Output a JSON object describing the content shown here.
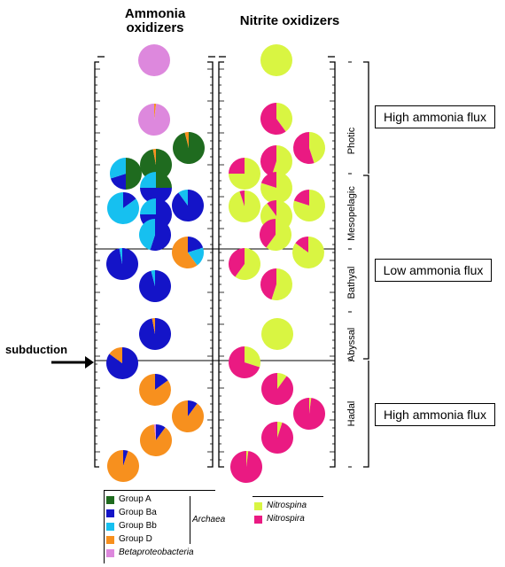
{
  "titles": {
    "ammonia": "Ammonia oxidizers",
    "nitrite": "Nitrite oxidizers"
  },
  "zones": [
    "Photic",
    "Mesopelagic",
    "Bathyal",
    "Abyssal",
    "Hadal"
  ],
  "flux": [
    "High ammonia flux",
    "Low ammonia flux",
    "High ammonia flux"
  ],
  "subduction": "subduction",
  "colors": {
    "groupA": "#1f6b1f",
    "groupBa": "#1414c8",
    "groupBb": "#16c0f0",
    "groupD": "#f7901e",
    "beta": "#dd88dd",
    "nitrospina": "#d9f542",
    "nitrospira": "#ea1a82"
  },
  "legend_ammonia": {
    "items": [
      {
        "label": "Group A",
        "color": "#1f6b1f"
      },
      {
        "label": "Group Ba",
        "color": "#1414c8"
      },
      {
        "label": "Group Bb",
        "color": "#16c0f0"
      },
      {
        "label": "Group D",
        "color": "#f7901e"
      },
      {
        "label": "Betaproteobacteria",
        "color": "#dd88dd",
        "italic": true
      }
    ],
    "archaea": "Archaea"
  },
  "legend_nitrite": {
    "items": [
      {
        "label": "Nitrospina",
        "color": "#d9f542"
      },
      {
        "label": "Nitrospira",
        "color": "#ea1a82"
      }
    ]
  },
  "chart_data": {
    "type": "pie",
    "note_groups": [
      "Group A",
      "Group Ba",
      "Group Bb",
      "Group D",
      "Betaproteobacteria",
      "Nitrospina",
      "Nitrospira"
    ],
    "ammonia_pies": [
      {
        "slices": [
          0,
          0,
          0,
          0,
          1
        ]
      },
      {
        "slices": [
          0,
          0,
          0,
          0.02,
          0.98
        ]
      },
      {
        "slices": [
          0.97,
          0,
          0,
          0.03,
          0
        ]
      },
      {
        "slices": [
          0.96,
          0,
          0,
          0.04,
          0
        ]
      },
      {
        "slices": [
          0.5,
          0.2,
          0.3,
          0,
          0
        ]
      },
      {
        "slices": [
          0.25,
          0.5,
          0.25,
          0,
          0
        ]
      },
      {
        "slices": [
          0,
          0.15,
          0.85,
          0,
          0
        ]
      },
      {
        "slices": [
          0,
          0.9,
          0.1,
          0,
          0
        ]
      },
      {
        "slices": [
          0,
          0.75,
          0.25,
          0,
          0
        ]
      },
      {
        "slices": [
          0,
          0.55,
          0.45,
          0,
          0
        ]
      },
      {
        "slices": [
          0,
          0.2,
          0.2,
          0.6,
          0
        ]
      },
      {
        "slices": [
          0,
          0.97,
          0.03,
          0,
          0
        ]
      },
      {
        "slices": [
          0,
          0.96,
          0.04,
          0,
          0
        ]
      },
      {
        "slices": [
          0,
          0.97,
          0,
          0.03,
          0
        ]
      },
      {
        "slices": [
          0,
          0.85,
          0,
          0.15,
          0
        ]
      },
      {
        "slices": [
          0,
          0.15,
          0,
          0.85,
          0
        ]
      },
      {
        "slices": [
          0,
          0.1,
          0,
          0.9,
          0
        ]
      },
      {
        "slices": [
          0,
          0.1,
          0,
          0.88,
          0.02
        ]
      },
      {
        "slices": [
          0,
          0.05,
          0,
          0.95,
          0
        ]
      },
      {
        "slices": [
          0,
          0.3,
          0,
          0.5,
          0.2
        ]
      }
    ],
    "nitrite_pies": [
      {
        "slices": [
          1,
          0
        ]
      },
      {
        "slices": [
          0.4,
          0.6
        ]
      },
      {
        "slices": [
          0.55,
          0.45
        ]
      },
      {
        "slices": [
          0.45,
          0.55
        ]
      },
      {
        "slices": [
          0.75,
          0.25
        ]
      },
      {
        "slices": [
          0.8,
          0.2
        ]
      },
      {
        "slices": [
          0.95,
          0.05
        ]
      },
      {
        "slices": [
          0.8,
          0.2
        ]
      },
      {
        "slices": [
          0.9,
          0.1
        ]
      },
      {
        "slices": [
          0.6,
          0.4
        ]
      },
      {
        "slices": [
          0.85,
          0.15
        ]
      },
      {
        "slices": [
          0.6,
          0.4
        ]
      },
      {
        "slices": [
          0.55,
          0.45
        ]
      },
      {
        "slices": [
          1,
          0
        ]
      },
      {
        "slices": [
          0.3,
          0.7
        ]
      },
      {
        "slices": [
          0.1,
          0.9
        ]
      },
      {
        "slices": [
          0.02,
          0.98
        ]
      },
      {
        "slices": [
          0.05,
          0.95
        ]
      },
      {
        "slices": [
          0.02,
          0.98
        ]
      }
    ]
  }
}
